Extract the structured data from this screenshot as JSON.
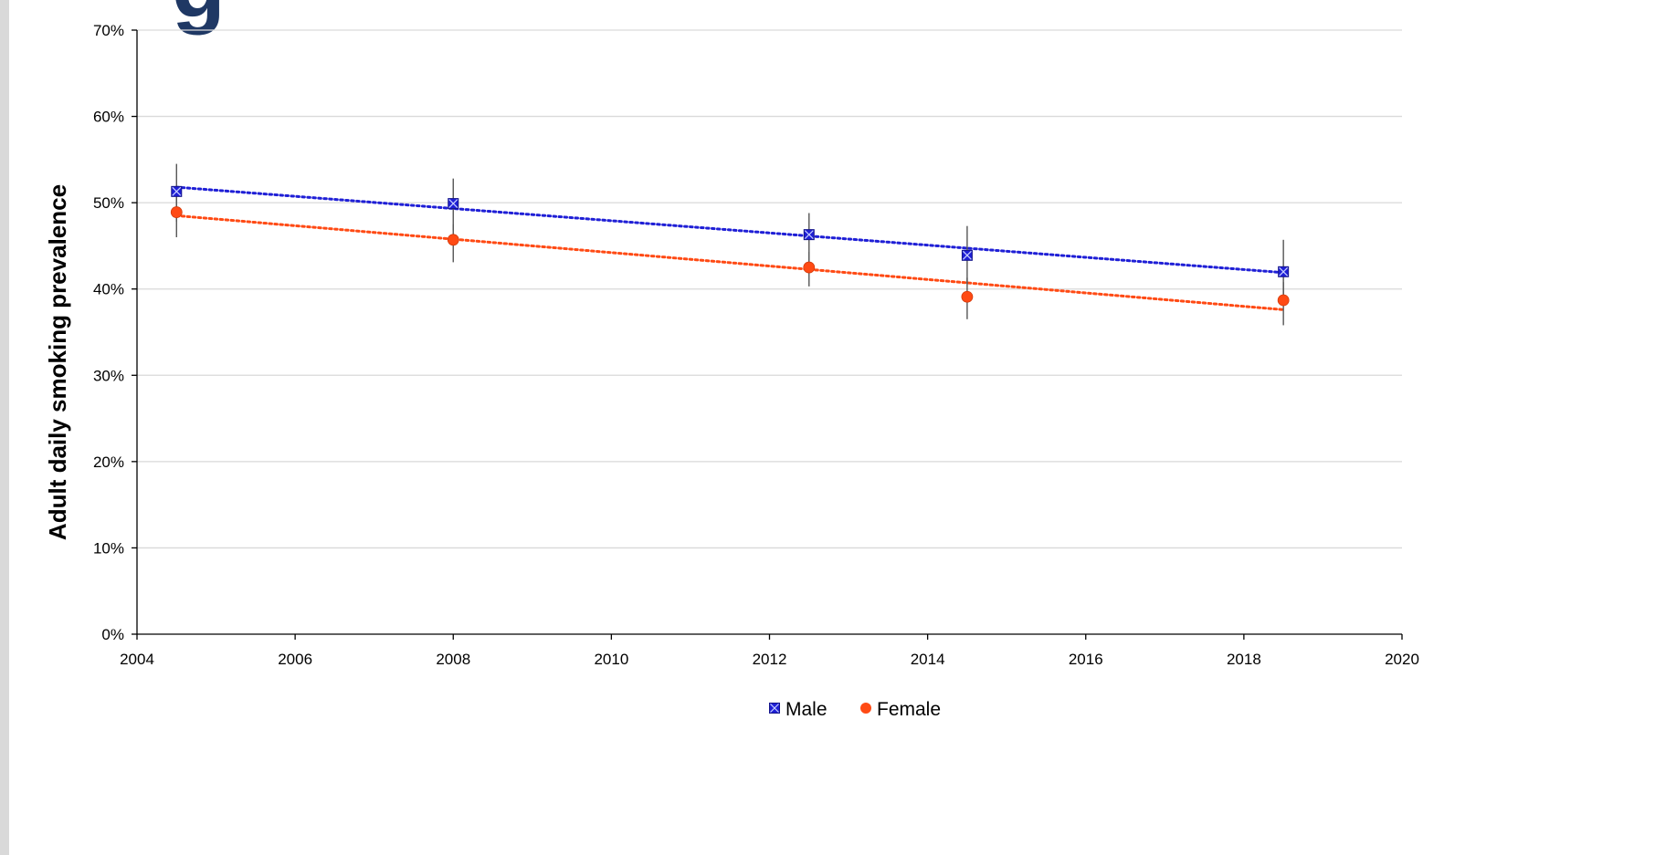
{
  "header": {
    "title_fragment": "g"
  },
  "chart_data": {
    "type": "scatter",
    "title": "",
    "xlabel": "",
    "ylabel": "Adult daily smoking prevalence",
    "xlim": [
      2004,
      2020
    ],
    "ylim": [
      0,
      0.7
    ],
    "x_ticks": [
      2004,
      2006,
      2008,
      2010,
      2012,
      2014,
      2016,
      2018,
      2020
    ],
    "y_ticks": [
      0,
      0.1,
      0.2,
      0.3,
      0.4,
      0.5,
      0.6,
      0.7
    ],
    "y_tick_labels": [
      "0%",
      "10%",
      "20%",
      "30%",
      "40%",
      "50%",
      "60%",
      "70%"
    ],
    "grid": "horizontal",
    "legend_position": "bottom",
    "series": [
      {
        "name": "Male",
        "color": "#1f1fd6",
        "marker": "square-x",
        "x": [
          2004.5,
          2008,
          2012.5,
          2014.5,
          2018.5
        ],
        "y": [
          0.513,
          0.499,
          0.463,
          0.439,
          0.42
        ],
        "y_low": [
          0.478,
          0.468,
          0.432,
          0.406,
          0.384
        ],
        "y_high": [
          0.545,
          0.528,
          0.488,
          0.473,
          0.457
        ],
        "trend": [
          [
            2004.5,
            0.518
          ],
          [
            2018.5,
            0.419
          ]
        ]
      },
      {
        "name": "Female",
        "color": "#ff4a14",
        "marker": "circle",
        "x": [
          2004.5,
          2008,
          2012.5,
          2014.5,
          2018.5
        ],
        "y": [
          0.489,
          0.457,
          0.425,
          0.391,
          0.387
        ],
        "y_low": [
          0.46,
          0.431,
          0.403,
          0.365,
          0.358
        ],
        "y_high": [
          0.506,
          0.475,
          0.443,
          0.413,
          0.408
        ],
        "trend": [
          [
            2004.5,
            0.485
          ],
          [
            2018.5,
            0.376
          ]
        ]
      }
    ]
  }
}
